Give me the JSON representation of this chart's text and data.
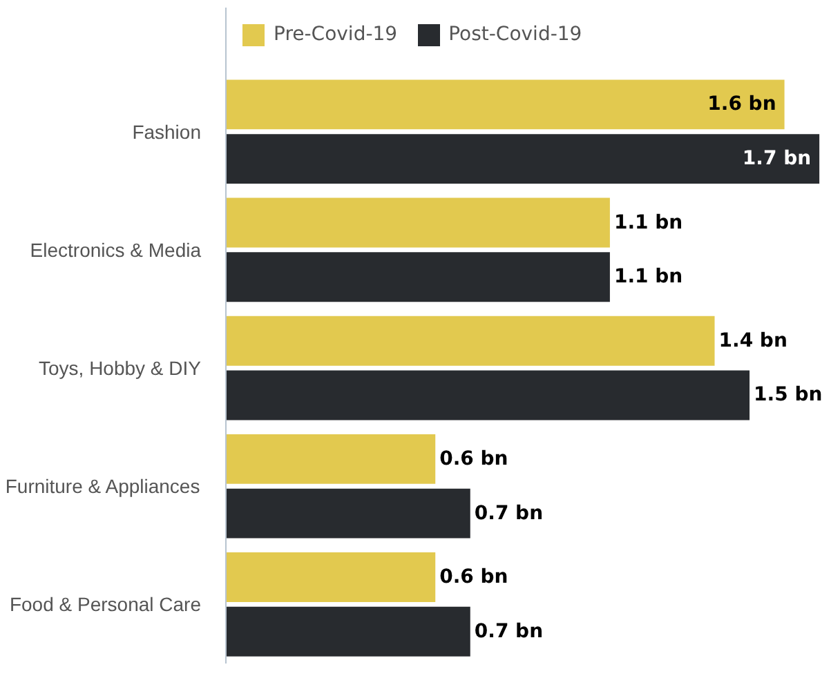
{
  "chart_data": {
    "type": "bar",
    "orientation": "horizontal",
    "categories": [
      "Fashion",
      "Electronics & Media",
      "Toys, Hobby & DIY",
      "Furniture & Appliances",
      "Food & Personal Care"
    ],
    "series": [
      {
        "name": "Pre-Covid-19",
        "color": "#e2c94f",
        "values": [
          1.6,
          1.1,
          1.4,
          0.6,
          0.6
        ],
        "value_labels": [
          "1.6 bn",
          "1.1 bn",
          "1.4 bn",
          "0.6 bn",
          "0.6 bn"
        ]
      },
      {
        "name": "Post-Covid-19",
        "color": "#282b2f",
        "values": [
          1.7,
          1.1,
          1.5,
          0.7,
          0.7
        ],
        "value_labels": [
          "1.7 bn",
          "1.1 bn",
          "1.5 bn",
          "0.7 bn",
          "0.7 bn"
        ]
      }
    ],
    "legend": "top left"
  }
}
